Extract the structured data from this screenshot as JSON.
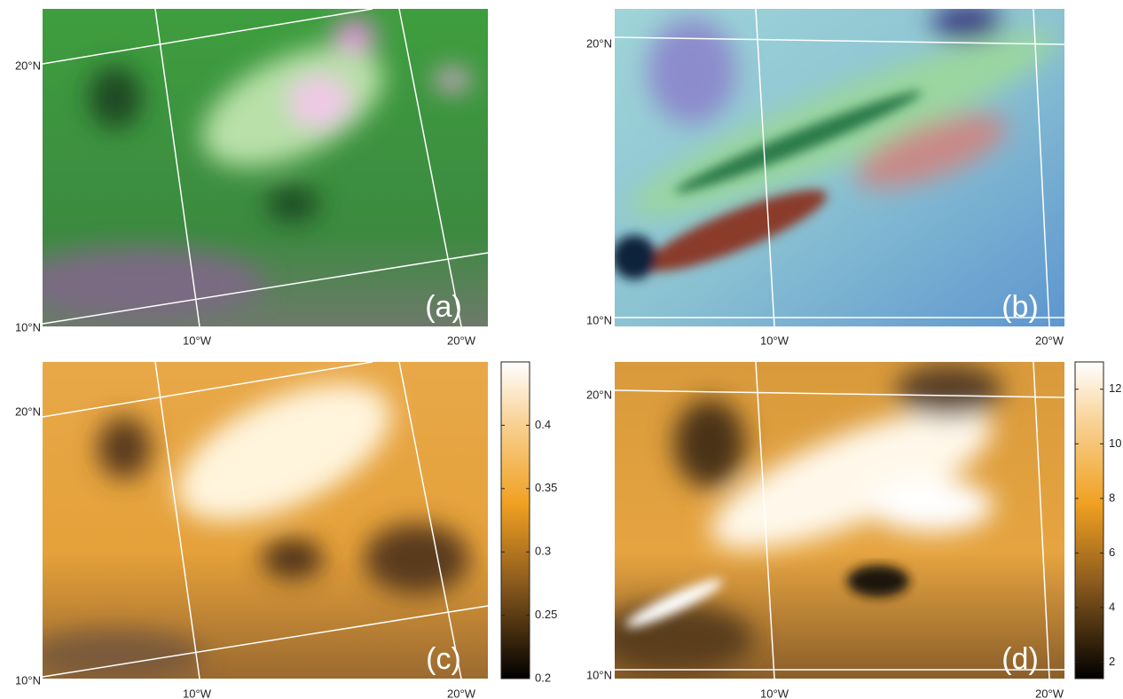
{
  "panels": [
    {
      "letter": "(a)",
      "lat_labels": [
        "20°N",
        "10°N"
      ],
      "lon_labels": [
        "10°W",
        "20°W"
      ]
    },
    {
      "letter": "(b)",
      "lat_labels": [
        "20°N",
        "10°N"
      ],
      "lon_labels": [
        "10°W",
        "20°W"
      ]
    },
    {
      "letter": "(c)",
      "lat_labels": [
        "20°N",
        "10°N"
      ],
      "lon_labels": [
        "10°W",
        "20°W"
      ],
      "colorbar": {
        "lim": [
          0.2,
          0.45
        ],
        "ticks": [
          0.2,
          0.25,
          0.3,
          0.35,
          0.4
        ]
      }
    },
    {
      "letter": "(d)",
      "lat_labels": [
        "20°N",
        "10°N"
      ],
      "lon_labels": [
        "10°W",
        "20°W"
      ],
      "colorbar": {
        "lim": [
          1.4,
          13
        ],
        "ticks": [
          2,
          4,
          6,
          8,
          10,
          12
        ]
      }
    }
  ]
}
